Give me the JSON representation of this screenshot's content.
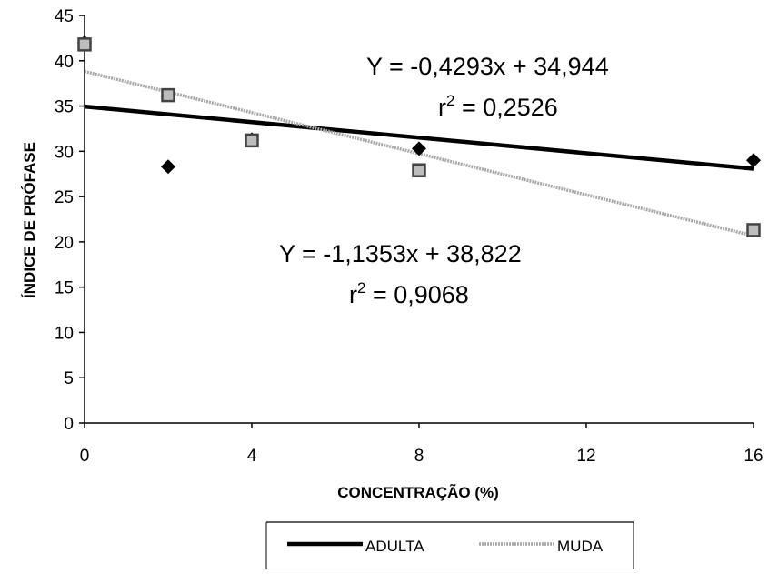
{
  "chart_data": {
    "type": "scatter",
    "title": "",
    "xlabel": "CONCENTRAÇÃO (%)",
    "ylabel": "ÍNDICE DE PRÓFASE",
    "xlim": [
      0,
      16
    ],
    "ylim": [
      0,
      45
    ],
    "x_ticks": [
      "0",
      "4",
      "8",
      "12",
      "16"
    ],
    "y_ticks": [
      "0",
      "5",
      "10",
      "15",
      "20",
      "25",
      "30",
      "35",
      "40",
      "45"
    ],
    "grid": false,
    "legend_position": "bottom",
    "series": [
      {
        "name": "ADULTA",
        "marker": "diamond",
        "color": "#000000",
        "trendline_color": "#000000",
        "points": [
          {
            "x": 0,
            "y": 42
          },
          {
            "x": 2,
            "y": 28.3
          },
          {
            "x": 4,
            "y": 31.3
          },
          {
            "x": 8,
            "y": 30.3
          },
          {
            "x": 16,
            "y": 29
          }
        ],
        "trendline": {
          "slope": -0.4293,
          "intercept": 34.944
        },
        "equation": "Y = -0,4293x + 34,944",
        "r2_prefix": "r",
        "r2_sup": "2",
        "r2_value": " = 0,2526"
      },
      {
        "name": "MUDA",
        "marker": "square",
        "color": "#444444",
        "trendline_color": "#a9a9a9",
        "points": [
          {
            "x": 0,
            "y": 41.8
          },
          {
            "x": 2,
            "y": 36.2
          },
          {
            "x": 4,
            "y": 31.2
          },
          {
            "x": 8,
            "y": 27.9
          },
          {
            "x": 16,
            "y": 21.3
          }
        ],
        "trendline": {
          "slope": -1.1353,
          "intercept": 38.822
        },
        "equation": "Y = -1,1353x + 38,822",
        "r2_prefix": "r",
        "r2_sup": "2",
        "r2_value": " = 0,9068"
      }
    ]
  }
}
